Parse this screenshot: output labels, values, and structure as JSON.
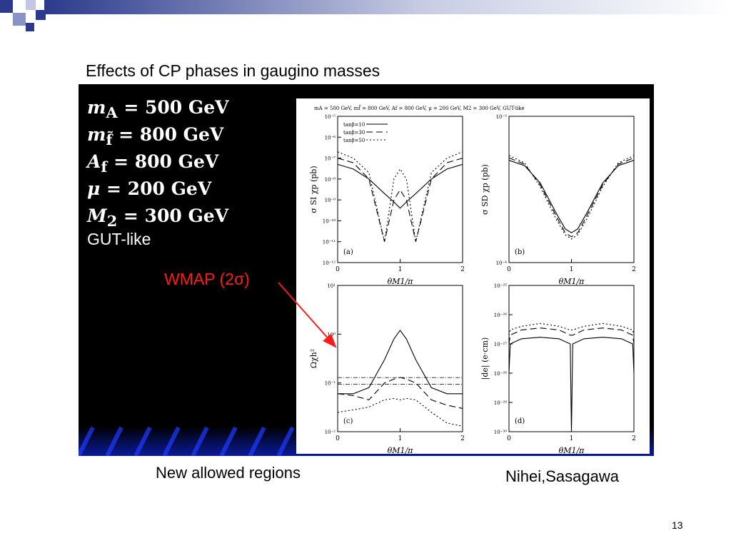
{
  "slide": {
    "title": "Effects of CP phases in gaugino masses",
    "caption_left": "New allowed regions",
    "caption_right": "Nihei,Sasagawa",
    "page_number": "13"
  },
  "params": [
    {
      "sym": "m",
      "sub": "A",
      "val": "= 500 GeV"
    },
    {
      "sym": "m",
      "sub": "f̃",
      "val": "= 800 GeV"
    },
    {
      "sym": "A",
      "sub": "f",
      "val": "= 800 GeV"
    },
    {
      "sym": "μ",
      "sub": "",
      "val": "= 200 GeV"
    },
    {
      "sym": "M",
      "sub": "2",
      "val": "= 300 GeV"
    }
  ],
  "gut_label": "GUT-like",
  "wmap_label": "WMAP (2σ)",
  "colors": {
    "accent": "#ff1a1a",
    "deco": "#2b3a8c",
    "panel": "#000000"
  },
  "figure": {
    "header": "mA = 500 GeV, mf̃ = 800 GeV, Af = 800 GeV, μ = 200 GeV, M2 = 300 GeV, GUT-like",
    "xlabel": "θM1/π",
    "legend": [
      "tanβ=10",
      "tanβ=30",
      "tanβ=50"
    ]
  },
  "chart_data": [
    {
      "type": "line",
      "panel": "(a)",
      "ylabel": "σ SI χp (pb)",
      "yscale": "log",
      "ylim": [
        1e-12,
        1e-05
      ],
      "xlabel": "θM1/π",
      "xlim": [
        0,
        2
      ],
      "x": [
        0,
        0.25,
        0.5,
        0.75,
        0.9,
        1.0,
        1.1,
        1.25,
        1.5,
        1.75,
        2.0
      ],
      "series": [
        {
          "name": "tanβ=10",
          "dash": "",
          "values": [
            5e-08,
            3e-08,
            1e-08,
            2e-09,
            8e-10,
            4e-10,
            8e-10,
            2e-09,
            1e-08,
            3e-08,
            5e-08
          ]
        },
        {
          "name": "tanβ=30",
          "dash": "9,5",
          "values": [
            1e-07,
            6e-08,
            1e-08,
            1e-11,
            1e-09,
            3e-09,
            1e-09,
            1e-11,
            1e-08,
            6e-08,
            1e-07
          ]
        },
        {
          "name": "tanβ=50",
          "dash": "2,3",
          "values": [
            2e-07,
            1e-07,
            2e-08,
            1e-11,
            1e-08,
            3e-08,
            1e-08,
            1e-11,
            2e-08,
            1e-07,
            2e-07
          ]
        }
      ]
    },
    {
      "type": "line",
      "panel": "(b)",
      "ylabel": "σ SD χp (pb)",
      "yscale": "log",
      "ylim": [
        0.0001,
        0.001
      ],
      "xlabel": "θM1/π",
      "xlim": [
        0,
        2
      ],
      "x": [
        0,
        0.25,
        0.5,
        0.75,
        0.9,
        1.0,
        1.1,
        1.25,
        1.5,
        1.75,
        2.0
      ],
      "series": [
        {
          "name": "tanβ=10",
          "dash": "",
          "values": [
            0.0005,
            0.00046,
            0.00035,
            0.00022,
            0.00017,
            0.00016,
            0.00017,
            0.00022,
            0.00035,
            0.00046,
            0.0005
          ]
        },
        {
          "name": "tanβ=30",
          "dash": "9,5",
          "values": [
            0.00052,
            0.00047,
            0.00034,
            0.00021,
            0.00016,
            0.00015,
            0.00016,
            0.00021,
            0.00034,
            0.00047,
            0.00052
          ]
        },
        {
          "name": "tanβ=50",
          "dash": "2,3",
          "values": [
            0.00054,
            0.00048,
            0.00033,
            0.0002,
            0.000155,
            0.000145,
            0.000155,
            0.0002,
            0.00033,
            0.00048,
            0.00054
          ]
        }
      ]
    },
    {
      "type": "line",
      "panel": "(c)",
      "ylabel": "Ωχh²",
      "yscale": "log",
      "ylim": [
        0.01,
        10.0
      ],
      "xlabel": "θM1/π",
      "xlim": [
        0,
        2
      ],
      "x": [
        0,
        0.25,
        0.5,
        0.75,
        0.9,
        1.0,
        1.1,
        1.25,
        1.5,
        1.75,
        2.0
      ],
      "hlines": [
        0.094,
        0.129
      ],
      "series": [
        {
          "name": "tanβ=10",
          "dash": "",
          "values": [
            0.06,
            0.06,
            0.08,
            0.3,
            0.8,
            1.2,
            0.8,
            0.3,
            0.08,
            0.06,
            0.06
          ]
        },
        {
          "name": "tanβ=30",
          "dash": "9,5",
          "values": [
            0.06,
            0.055,
            0.045,
            0.1,
            0.12,
            0.13,
            0.12,
            0.1,
            0.045,
            0.035,
            0.03
          ]
        },
        {
          "name": "tanβ=50",
          "dash": "2,3",
          "values": [
            0.025,
            0.028,
            0.032,
            0.045,
            0.048,
            0.045,
            0.048,
            0.045,
            0.025,
            0.015,
            0.013
          ]
        }
      ]
    },
    {
      "type": "line",
      "panel": "(d)",
      "ylabel": "|de| (e·cm)",
      "yscale": "log",
      "ylim": [
        1e-30,
        1e-25
      ],
      "xlabel": "θM1/π",
      "xlim": [
        0,
        2
      ],
      "x": [
        0,
        0.02,
        0.2,
        0.5,
        0.8,
        0.98,
        1.0,
        1.02,
        1.2,
        1.5,
        1.8,
        1.98,
        2.0
      ],
      "series": [
        {
          "name": "tanβ=10",
          "dash": "",
          "values": [
            1e-28,
            1e-27,
            1.5e-27,
            1.7e-27,
            1.5e-27,
            1e-27,
            1e-30,
            1e-27,
            1.5e-27,
            1.7e-27,
            1.5e-27,
            1e-27,
            1e-28
          ]
        },
        {
          "name": "tanβ=30",
          "dash": "9,5",
          "values": [
            1e-27,
            2e-27,
            3e-27,
            3.5e-27,
            3e-27,
            2e-27,
            2e-27,
            2e-27,
            3e-27,
            3.5e-27,
            3e-27,
            2e-27,
            1e-27
          ]
        },
        {
          "name": "tanβ=50",
          "dash": "2,3",
          "values": [
            2e-27,
            3e-27,
            4e-27,
            5e-27,
            4e-27,
            3e-27,
            3e-27,
            3e-27,
            4e-27,
            5e-27,
            4e-27,
            3e-27,
            2e-27
          ]
        }
      ]
    }
  ]
}
